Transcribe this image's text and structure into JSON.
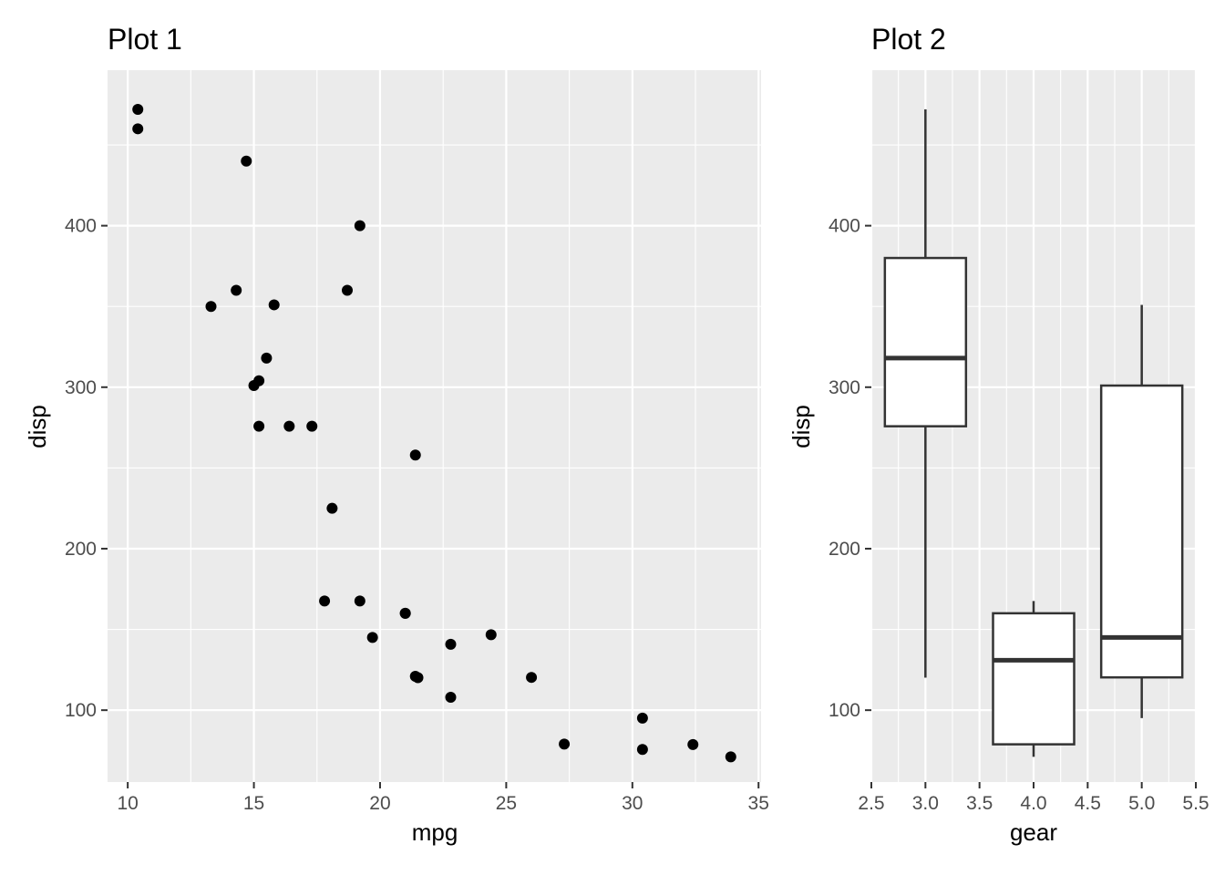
{
  "chart_data": [
    {
      "type": "scatter",
      "title": "Plot 1",
      "xlabel": "mpg",
      "ylabel": "disp",
      "xlim": [
        9.2,
        35.1
      ],
      "ylim": [
        55.5,
        496.3
      ],
      "x_ticks": [
        10,
        15,
        20,
        25,
        30,
        35
      ],
      "x_tick_labels": [
        "10",
        "15",
        "20",
        "25",
        "30",
        "35"
      ],
      "y_ticks": [
        100,
        200,
        300,
        400
      ],
      "y_tick_labels": [
        "100",
        "200",
        "300",
        "400"
      ],
      "grid": true,
      "points": [
        {
          "x": 10.4,
          "y": 472
        },
        {
          "x": 10.4,
          "y": 460
        },
        {
          "x": 14.7,
          "y": 440
        },
        {
          "x": 19.2,
          "y": 400
        },
        {
          "x": 14.3,
          "y": 360
        },
        {
          "x": 18.7,
          "y": 360
        },
        {
          "x": 15.8,
          "y": 351
        },
        {
          "x": 13.3,
          "y": 350
        },
        {
          "x": 15.5,
          "y": 318
        },
        {
          "x": 15.2,
          "y": 304
        },
        {
          "x": 15.0,
          "y": 301
        },
        {
          "x": 15.2,
          "y": 275.8
        },
        {
          "x": 16.4,
          "y": 275.8
        },
        {
          "x": 17.3,
          "y": 275.8
        },
        {
          "x": 21.4,
          "y": 258
        },
        {
          "x": 18.1,
          "y": 225
        },
        {
          "x": 17.8,
          "y": 167.6
        },
        {
          "x": 19.2,
          "y": 167.6
        },
        {
          "x": 21.0,
          "y": 160
        },
        {
          "x": 21.0,
          "y": 160
        },
        {
          "x": 24.4,
          "y": 146.7
        },
        {
          "x": 19.7,
          "y": 145
        },
        {
          "x": 22.8,
          "y": 140.8
        },
        {
          "x": 21.4,
          "y": 121
        },
        {
          "x": 21.5,
          "y": 120.1
        },
        {
          "x": 26.0,
          "y": 120.3
        },
        {
          "x": 22.8,
          "y": 108
        },
        {
          "x": 30.4,
          "y": 95.1
        },
        {
          "x": 27.3,
          "y": 79
        },
        {
          "x": 32.4,
          "y": 78.7
        },
        {
          "x": 30.4,
          "y": 75.7
        },
        {
          "x": 33.9,
          "y": 71.1
        }
      ]
    },
    {
      "type": "box",
      "title": "Plot 2",
      "xlabel": "gear",
      "ylabel": "disp",
      "xlim": [
        2.5,
        5.5
      ],
      "ylim": [
        55.5,
        496.3
      ],
      "x_ticks": [
        2.5,
        3.0,
        3.5,
        4.0,
        4.5,
        5.0,
        5.5
      ],
      "x_tick_labels": [
        "2.5",
        "3.0",
        "3.5",
        "4.0",
        "4.5",
        "5.0",
        "5.5"
      ],
      "y_ticks": [
        100,
        200,
        300,
        400
      ],
      "y_tick_labels": [
        "100",
        "200",
        "300",
        "400"
      ],
      "grid": true,
      "boxes": [
        {
          "x": 3,
          "min": 120.1,
          "q1": 275.8,
          "median": 318,
          "q3": 380,
          "max": 472
        },
        {
          "x": 4,
          "min": 71.1,
          "q1": 78.85,
          "median": 130.9,
          "q3": 160,
          "max": 167.6
        },
        {
          "x": 5,
          "min": 95.1,
          "q1": 120.3,
          "median": 145,
          "q3": 301,
          "max": 351
        }
      ]
    }
  ]
}
